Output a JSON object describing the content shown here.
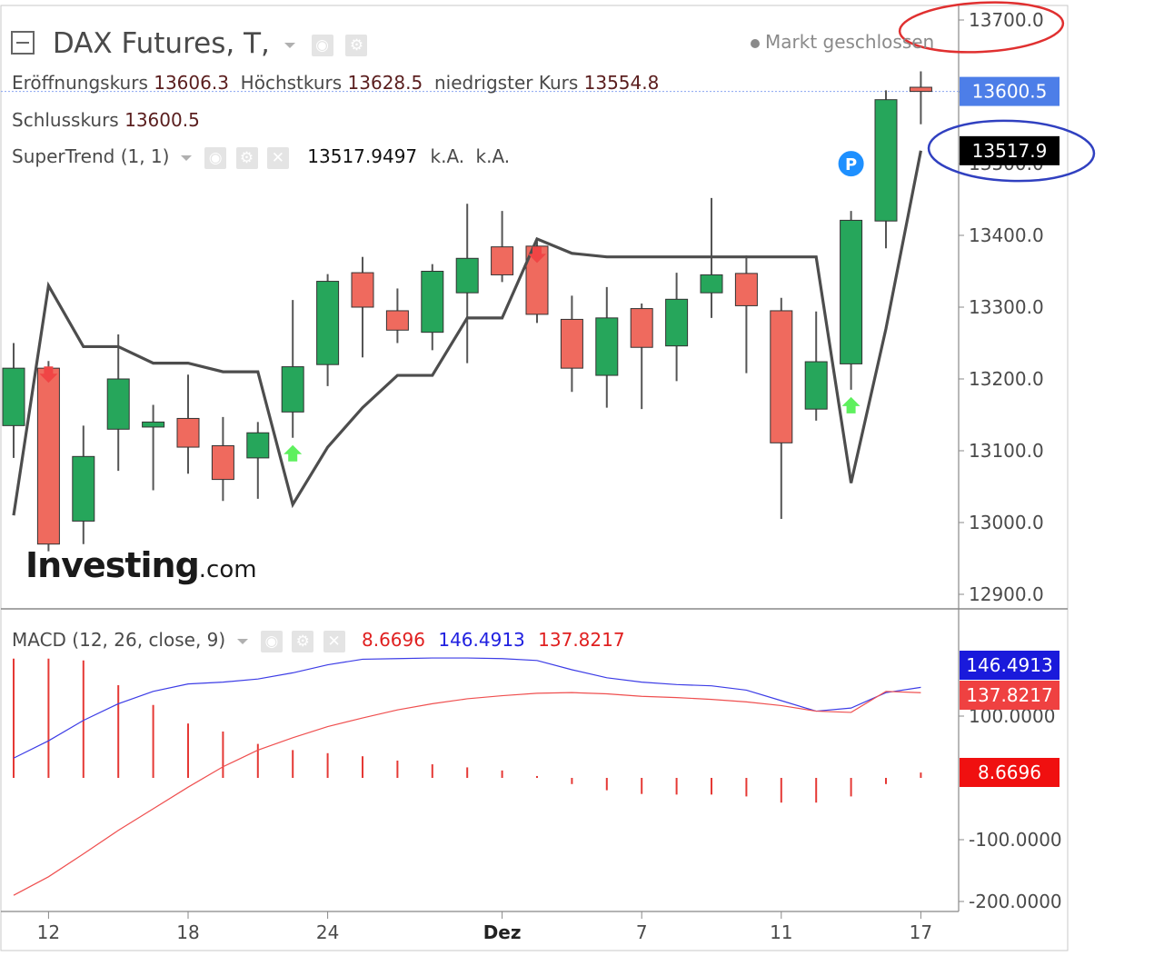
{
  "header": {
    "symbol": "DAX Futures, T,",
    "market_status": "Markt geschlossen",
    "open_label": "Eröffnungskurs",
    "open_value": "13606.3",
    "high_label": "Höchstkurs",
    "high_value": "13628.5",
    "low_label": "niedrigster Kurs",
    "low_value": "13554.8",
    "close_label": "Schlusskurs",
    "close_value": "13600.5",
    "supertrend_label": "SuperTrend (1, 1)",
    "supertrend_value": "13517.9497",
    "supertrend_na1": "k.A.",
    "supertrend_na2": "k.A."
  },
  "macd_header": {
    "label": "MACD (12, 26, close, 9)",
    "hist_value": "8.6696",
    "macd_value": "146.4913",
    "signal_value": "137.8217"
  },
  "watermark": {
    "brand": "Investing",
    "suffix": ".com"
  },
  "badges": {
    "last_price": "13600.5",
    "supertrend": "13517.9",
    "macd": "146.4913",
    "signal": "137.8217",
    "hist": "8.6696"
  },
  "colors": {
    "up": "#26a65b",
    "down": "#ef6a5e",
    "wick": "#555555",
    "supertrend": "#4d4d4d",
    "macd": "#3c3ce6",
    "signal": "#ef4f4f",
    "hist": "#e53935",
    "badge_last": "#4d7ee8",
    "badge_macd": "#1a1adb",
    "badge_signal": "#ef4141",
    "badge_hist": "#f01010",
    "circle_red": "#e03030",
    "circle_blue": "#3040c0",
    "arrow_up": "#5ef05e",
    "arrow_down": "#f04545",
    "p_marker": "#1e90ff"
  },
  "icons": {
    "collapse": "square-minus-icon",
    "eye": "eye-icon",
    "gear": "gear-icon",
    "close": "close-icon",
    "dot": "status-dot-icon",
    "p": "p-marker-icon",
    "up_arrow": "up-arrow-icon",
    "down_arrow": "down-arrow-icon"
  },
  "chart_data": [
    {
      "type": "candlestick",
      "title": "DAX Futures, T,",
      "price_axis_ticks": [
        "13700.0",
        "13600.0",
        "13500.0",
        "13400.0",
        "13300.0",
        "13200.0",
        "13100.0",
        "13000.0",
        "12900.0"
      ],
      "price_axis_values": [
        13700,
        13600,
        13500,
        13400,
        13300,
        13200,
        13100,
        13000,
        12900
      ],
      "ylim": [
        12880,
        13740
      ],
      "x_tick_labels": [
        "12",
        "18",
        "24",
        "Dez",
        "7",
        "11",
        "17"
      ],
      "x_tick_index": [
        1,
        5,
        9,
        14,
        18,
        22,
        26
      ],
      "candles": [
        {
          "o": 13135,
          "h": 13250,
          "l": 13090,
          "c": 13215
        },
        {
          "o": 13215,
          "h": 13225,
          "l": 12960,
          "c": 12970
        },
        {
          "o": 13002,
          "h": 13135,
          "l": 12970,
          "c": 13092
        },
        {
          "o": 13130,
          "h": 13262,
          "l": 13072,
          "c": 13200
        },
        {
          "o": 13133,
          "h": 13164,
          "l": 13045,
          "c": 13140
        },
        {
          "o": 13145,
          "h": 13206,
          "l": 13068,
          "c": 13105
        },
        {
          "o": 13107,
          "h": 13147,
          "l": 13030,
          "c": 13060
        },
        {
          "o": 13090,
          "h": 13140,
          "l": 13033,
          "c": 13125
        },
        {
          "o": 13154,
          "h": 13310,
          "l": 13118,
          "c": 13217
        },
        {
          "o": 13220,
          "h": 13346,
          "l": 13190,
          "c": 13336
        },
        {
          "o": 13348,
          "h": 13370,
          "l": 13230,
          "c": 13300
        },
        {
          "o": 13295,
          "h": 13326,
          "l": 13250,
          "c": 13268
        },
        {
          "o": 13265,
          "h": 13360,
          "l": 13240,
          "c": 13350
        },
        {
          "o": 13320,
          "h": 13444,
          "l": 13222,
          "c": 13368
        },
        {
          "o": 13384,
          "h": 13434,
          "l": 13335,
          "c": 13345
        },
        {
          "o": 13385,
          "h": 13392,
          "l": 13278,
          "c": 13290
        },
        {
          "o": 13283,
          "h": 13316,
          "l": 13182,
          "c": 13215
        },
        {
          "o": 13205,
          "h": 13328,
          "l": 13160,
          "c": 13285
        },
        {
          "o": 13298,
          "h": 13305,
          "l": 13158,
          "c": 13244
        },
        {
          "o": 13246,
          "h": 13348,
          "l": 13197,
          "c": 13311
        },
        {
          "o": 13320,
          "h": 13452,
          "l": 13285,
          "c": 13345
        },
        {
          "o": 13347,
          "h": 13372,
          "l": 13208,
          "c": 13302
        },
        {
          "o": 13295,
          "h": 13313,
          "l": 13005,
          "c": 13111
        },
        {
          "o": 13158,
          "h": 13294,
          "l": 13142,
          "c": 13224
        },
        {
          "o": 13221,
          "h": 13434,
          "l": 13185,
          "c": 13421
        },
        {
          "o": 13420,
          "h": 13602,
          "l": 13382,
          "c": 13589
        },
        {
          "o": 13606.3,
          "h": 13628.5,
          "l": 13554.8,
          "c": 13600.5
        }
      ],
      "supertrend": [
        13010,
        13330,
        13245,
        13245,
        13222,
        13222,
        13210,
        13210,
        13025,
        13105,
        13160,
        13205,
        13205,
        13285,
        13285,
        13395,
        13375,
        13370,
        13370,
        13370,
        13370,
        13370,
        13370,
        13370,
        13055,
        13270,
        13517.9
      ],
      "signals": [
        {
          "i": 1,
          "type": "sell"
        },
        {
          "i": 8,
          "type": "buy"
        },
        {
          "i": 15,
          "type": "sell"
        },
        {
          "i": 24,
          "type": "buy"
        }
      ],
      "p_marker": {
        "i": 24
      },
      "last_price": 13600.5,
      "supertrend_last": 13517.9
    },
    {
      "type": "line+histogram",
      "title": "MACD (12, 26, close, 9)",
      "axis_ticks": [
        "100.0000",
        "-100.0000",
        "-200.0000"
      ],
      "axis_values": [
        100,
        -100,
        -200
      ],
      "ylim": [
        -215,
        205
      ],
      "series": [
        {
          "name": "MACD",
          "values": [
            32,
            60,
            93,
            120,
            140,
            152,
            155,
            160,
            170,
            183,
            192,
            193,
            194,
            194,
            193,
            190,
            175,
            162,
            155,
            151,
            149,
            142,
            125,
            108,
            113,
            138,
            146.4913
          ]
        },
        {
          "name": "Signal",
          "values": [
            -190,
            -160,
            -123,
            -85,
            -50,
            -15,
            18,
            45,
            65,
            83,
            97,
            110,
            120,
            128,
            133,
            137,
            138,
            136,
            132,
            130,
            127,
            123,
            117,
            108,
            106,
            140,
            137.8217
          ]
        },
        {
          "name": "Histogram",
          "values": [
            193,
            193,
            190,
            150,
            118,
            88,
            75,
            55,
            45,
            40,
            35,
            28,
            22,
            17,
            12,
            3,
            -10,
            -20,
            -26,
            -27,
            -27,
            -30,
            -40,
            -40,
            -30,
            -10,
            8.6696
          ]
        }
      ]
    }
  ]
}
